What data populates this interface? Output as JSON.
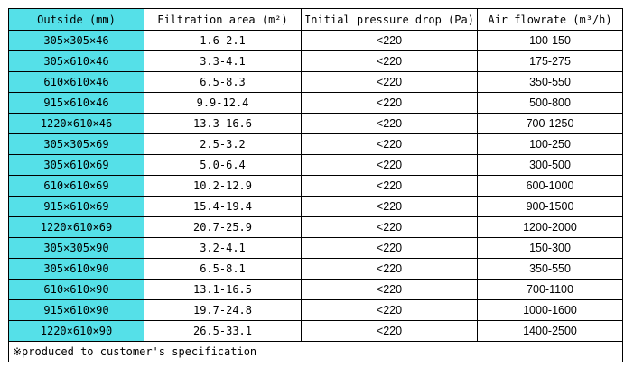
{
  "table": {
    "headers": {
      "outside": "Outside  (mm)",
      "area": "Filtration area (m²)",
      "pressure": "Initial pressure drop (Pa)",
      "flow": "Air flowrate (m³/h)"
    },
    "rows": [
      {
        "outside": "305×305×46",
        "area": "1.6-2.1",
        "pressure": "<220",
        "flow": "100-150"
      },
      {
        "outside": "305×610×46",
        "area": "3.3-4.1",
        "pressure": "<220",
        "flow": "175-275"
      },
      {
        "outside": "610×610×46",
        "area": "6.5-8.3",
        "pressure": "<220",
        "flow": "350-550"
      },
      {
        "outside": "915×610×46",
        "area": "9.9-12.4",
        "pressure": "<220",
        "flow": "500-800"
      },
      {
        "outside": "1220×610×46",
        "area": "13.3-16.6",
        "pressure": "<220",
        "flow": "700-1250"
      },
      {
        "outside": "305×305×69",
        "area": "2.5-3.2",
        "pressure": "<220",
        "flow": "100-250"
      },
      {
        "outside": "305×610×69",
        "area": "5.0-6.4",
        "pressure": "<220",
        "flow": "300-500"
      },
      {
        "outside": "610×610×69",
        "area": "10.2-12.9",
        "pressure": "<220",
        "flow": "600-1000"
      },
      {
        "outside": "915×610×69",
        "area": "15.4-19.4",
        "pressure": "<220",
        "flow": "900-1500"
      },
      {
        "outside": "1220×610×69",
        "area": "20.7-25.9",
        "pressure": "<220",
        "flow": "1200-2000"
      },
      {
        "outside": "305×305×90",
        "area": "3.2-4.1",
        "pressure": "<220",
        "flow": "150-300"
      },
      {
        "outside": "305×610×90",
        "area": "6.5-8.1",
        "pressure": "<220",
        "flow": "350-550"
      },
      {
        "outside": "610×610×90",
        "area": "13.1-16.5",
        "pressure": "<220",
        "flow": "700-1100"
      },
      {
        "outside": "915×610×90",
        "area": "19.7-24.8",
        "pressure": "<220",
        "flow": "1000-1600"
      },
      {
        "outside": "1220×610×90",
        "area": "26.5-33.1",
        "pressure": "<220",
        "flow": "1400-2500"
      }
    ],
    "note": "※produced to customer's specification"
  },
  "colors": {
    "outside_column": "#55e0e8",
    "border": "#000000"
  }
}
